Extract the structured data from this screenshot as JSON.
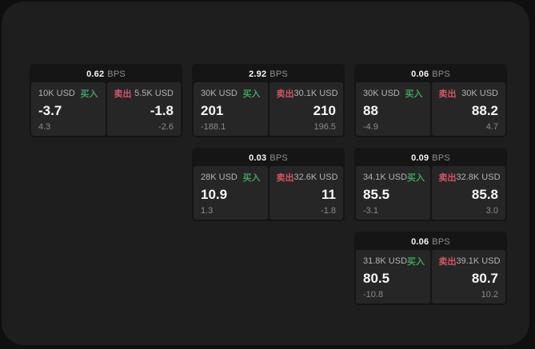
{
  "labels": {
    "bps_unit": "BPS",
    "buy": "买入",
    "sell": "卖出"
  },
  "colors": {
    "buy_green": "#3fa05e",
    "sell_red": "#d05666",
    "page_bg": "#1e1e1e",
    "card_bg": "#151515",
    "panel_bg": "#262626"
  },
  "cards": [
    {
      "row": 1,
      "col": 1,
      "bps": "0.62",
      "buy": {
        "amount": "10K USD",
        "price": "-3.7",
        "delta": "4.3"
      },
      "sell": {
        "amount": "5.5K USD",
        "price": "-1.8",
        "delta": "-2.6"
      }
    },
    {
      "row": 1,
      "col": 2,
      "bps": "2.92",
      "buy": {
        "amount": "30K USD",
        "price": "201",
        "delta": "-188.1"
      },
      "sell": {
        "amount": "30.1K USD",
        "price": "210",
        "delta": "196.5"
      }
    },
    {
      "row": 1,
      "col": 3,
      "bps": "0.06",
      "buy": {
        "amount": "30K USD",
        "price": "88",
        "delta": "-4.9"
      },
      "sell": {
        "amount": "30K USD",
        "price": "88.2",
        "delta": "4.7"
      }
    },
    {
      "row": 2,
      "col": 2,
      "bps": "0.03",
      "buy": {
        "amount": "28K USD",
        "price": "10.9",
        "delta": "1.3"
      },
      "sell": {
        "amount": "32.6K USD",
        "price": "11",
        "delta": "-1.8"
      }
    },
    {
      "row": 2,
      "col": 3,
      "bps": "0.09",
      "buy": {
        "amount": "34.1K USD",
        "price": "85.5",
        "delta": "-3.1"
      },
      "sell": {
        "amount": "32.8K USD",
        "price": "85.8",
        "delta": "3.0"
      }
    },
    {
      "row": 3,
      "col": 3,
      "bps": "0.06",
      "buy": {
        "amount": "31.8K USD",
        "price": "80.5",
        "delta": "-10.8"
      },
      "sell": {
        "amount": "39.1K USD",
        "price": "80.7",
        "delta": "10.2"
      }
    }
  ]
}
